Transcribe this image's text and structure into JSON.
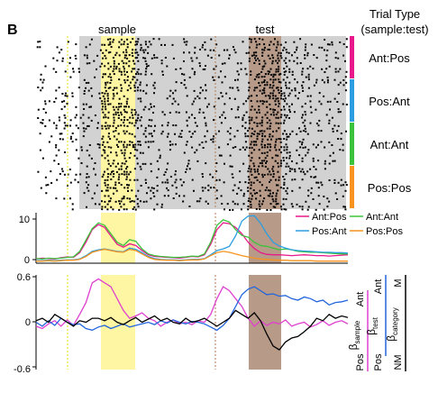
{
  "panel_letter": "B",
  "raster": {
    "epochs": [
      "sample",
      "test"
    ],
    "legend_title": [
      "Trial Type",
      "(sample:test)"
    ],
    "trial_types": [
      {
        "label": "Ant:Pos",
        "color": "#e8178a"
      },
      {
        "label": "Pos:Ant",
        "color": "#2a9ee0"
      },
      {
        "label": "Ant:Ant",
        "color": "#3bc23b"
      },
      {
        "label": "Pos:Pos",
        "color": "#f7931e"
      }
    ]
  },
  "colors": {
    "sample_window": "#fff6a3",
    "test_window": "#b89a88",
    "raster_shade": "#d2d2d2",
    "beta_sample": "#e040d0",
    "beta_test": "#2266dd",
    "beta_category": "#000000"
  },
  "chart_data": [
    {
      "type": "line",
      "title": "",
      "xlabel": "",
      "ylabel": "",
      "y_ticks": [
        "0",
        "10"
      ],
      "ylim": [
        0,
        12
      ],
      "x": [
        0,
        2,
        4,
        6,
        8,
        10,
        12,
        14,
        16,
        18,
        20,
        22,
        24,
        26,
        28,
        30,
        32,
        34,
        36,
        38,
        40,
        42,
        44,
        46,
        48,
        50,
        52,
        54,
        56,
        58,
        60,
        62,
        64,
        66,
        68,
        70,
        72,
        74,
        76,
        78,
        80,
        82,
        84,
        86,
        88,
        90,
        92,
        94,
        96,
        98,
        100
      ],
      "legend": [
        "Ant:Pos",
        "Ant:Ant",
        "Pos:Ant",
        "Pos:Pos"
      ],
      "series": [
        {
          "name": "Ant:Pos",
          "color": "#e8178a",
          "values": [
            1.0,
            1.2,
            1.1,
            1.0,
            1.3,
            1.5,
            1.4,
            2.5,
            5.0,
            8.0,
            9.2,
            8.5,
            6.5,
            4.5,
            3.8,
            4.6,
            4.2,
            3.0,
            2.0,
            1.6,
            1.5,
            1.4,
            1.3,
            1.2,
            1.4,
            1.6,
            1.5,
            2.0,
            4.5,
            8.0,
            9.6,
            9.4,
            8.5,
            7.0,
            5.0,
            3.5,
            2.5,
            2.1,
            2.0,
            2.0,
            1.9,
            1.8,
            1.9,
            2.0,
            1.9,
            1.8,
            1.8,
            1.7,
            1.8,
            1.9,
            2.0
          ]
        },
        {
          "name": "Ant:Ant",
          "color": "#3bc23b",
          "values": [
            1.1,
            1.0,
            1.2,
            1.1,
            1.2,
            1.4,
            1.5,
            2.8,
            5.5,
            8.2,
            9.6,
            9.0,
            7.0,
            5.0,
            4.2,
            5.6,
            5.2,
            3.4,
            2.2,
            1.8,
            1.6,
            1.5,
            1.4,
            1.4,
            1.5,
            1.7,
            1.6,
            2.2,
            5.0,
            9.0,
            10.3,
            9.8,
            8.0,
            6.6,
            6.2,
            5.0,
            4.2,
            4.0,
            3.6,
            3.2,
            3.4,
            3.2,
            2.8,
            2.7,
            2.6,
            2.6,
            2.5,
            2.4,
            2.3,
            2.2,
            2.2
          ]
        },
        {
          "name": "Pos:Ant",
          "color": "#2a9ee0",
          "values": [
            0.6,
            0.6,
            0.7,
            0.6,
            0.7,
            0.8,
            0.8,
            1.0,
            1.8,
            2.8,
            3.2,
            3.4,
            3.1,
            2.8,
            2.7,
            3.6,
            3.3,
            2.5,
            1.6,
            1.1,
            0.9,
            0.8,
            0.8,
            0.7,
            0.8,
            0.9,
            0.9,
            1.1,
            2.0,
            3.0,
            3.4,
            4.0,
            6.5,
            10.0,
            11.2,
            11.3,
            9.5,
            7.0,
            5.0,
            4.1,
            3.6,
            3.2,
            3.0,
            2.9,
            2.8,
            2.7,
            2.6,
            2.6,
            2.5,
            2.5,
            2.4
          ]
        },
        {
          "name": "Pos:Pos",
          "color": "#f7931e",
          "values": [
            0.5,
            0.5,
            0.6,
            0.5,
            0.6,
            0.7,
            0.7,
            0.9,
            1.6,
            2.6,
            3.0,
            3.3,
            3.0,
            2.7,
            2.6,
            3.3,
            3.0,
            2.2,
            1.4,
            0.9,
            0.8,
            0.7,
            0.7,
            0.6,
            0.7,
            0.8,
            0.8,
            1.0,
            1.8,
            2.5,
            2.8,
            2.6,
            2.2,
            1.8,
            1.5,
            1.2,
            1.0,
            0.9,
            0.8,
            0.7,
            0.7,
            0.6,
            0.6,
            0.6,
            0.6,
            0.5,
            0.5,
            0.5,
            0.5,
            0.5,
            0.5
          ]
        }
      ]
    },
    {
      "type": "line",
      "title": "",
      "xlabel": "",
      "ylabel": "",
      "y_ticks": [
        "0.6",
        "0",
        "-0.6"
      ],
      "ylim": [
        -0.6,
        0.6
      ],
      "x": [
        0,
        2,
        4,
        6,
        8,
        10,
        12,
        14,
        16,
        18,
        20,
        22,
        24,
        26,
        28,
        30,
        32,
        34,
        36,
        38,
        40,
        42,
        44,
        46,
        48,
        50,
        52,
        54,
        56,
        58,
        60,
        62,
        64,
        66,
        68,
        70,
        72,
        74,
        76,
        78,
        80,
        82,
        84,
        86,
        88,
        90,
        92,
        94,
        96,
        98,
        100
      ],
      "side_labels": {
        "sample_top": "Ant",
        "sample_bottom": "Pos",
        "test_top": "Ant",
        "test_bottom": "Pos",
        "category_top": "M",
        "category_bottom": "NM"
      },
      "series": [
        {
          "name": "β",
          "subscript": "sample",
          "color": "#e040d0",
          "values": [
            -0.05,
            -0.08,
            -0.02,
            0.02,
            -0.05,
            0.03,
            -0.04,
            0.1,
            0.25,
            0.5,
            0.55,
            0.5,
            0.45,
            0.3,
            0.15,
            0.05,
            0.08,
            0.12,
            0.05,
            0.02,
            -0.05,
            0.0,
            0.03,
            -0.02,
            0.0,
            -0.03,
            0.02,
            0.0,
            0.1,
            0.3,
            0.45,
            0.4,
            0.3,
            0.2,
            0.05,
            -0.05,
            0.02,
            -0.04,
            0.0,
            -0.02,
            0.03,
            -0.05,
            -0.02,
            0.0,
            -0.06,
            -0.03,
            0.02,
            -0.04,
            0.0,
            0.02,
            -0.02
          ]
        },
        {
          "name": "β",
          "subscript": "test",
          "color": "#2266dd",
          "values": [
            0.0,
            -0.05,
            0.02,
            -0.04,
            0.05,
            0.0,
            -0.03,
            -0.02,
            -0.08,
            -0.1,
            -0.06,
            -0.04,
            -0.08,
            -0.05,
            -0.02,
            -0.06,
            -0.04,
            -0.02,
            0.0,
            -0.03,
            0.02,
            -0.01,
            0.03,
            0.0,
            -0.02,
            0.01,
            0.0,
            -0.02,
            -0.06,
            -0.1,
            -0.04,
            0.05,
            0.2,
            0.35,
            0.42,
            0.45,
            0.4,
            0.35,
            0.36,
            0.33,
            0.34,
            0.3,
            0.28,
            0.32,
            0.3,
            0.26,
            0.28,
            0.22,
            0.25,
            0.26,
            0.28
          ]
        },
        {
          "name": "β",
          "subscript": "category",
          "color": "#000000",
          "values": [
            0.02,
            0.05,
            0.0,
            0.1,
            0.05,
            0.0,
            -0.05,
            0.02,
            0.0,
            0.05,
            0.05,
            0.02,
            0.06,
            0.0,
            -0.03,
            0.02,
            0.06,
            0.0,
            0.04,
            0.08,
            0.02,
            0.05,
            0.0,
            -0.02,
            0.05,
            0.0,
            0.02,
            0.05,
            0.0,
            -0.05,
            0.0,
            0.05,
            0.15,
            0.1,
            0.05,
            0.12,
            0.02,
            -0.15,
            -0.3,
            -0.35,
            -0.25,
            -0.2,
            -0.18,
            -0.12,
            -0.05,
            0.05,
            0.02,
            0.1,
            0.05,
            0.08,
            0.06
          ]
        }
      ]
    }
  ]
}
